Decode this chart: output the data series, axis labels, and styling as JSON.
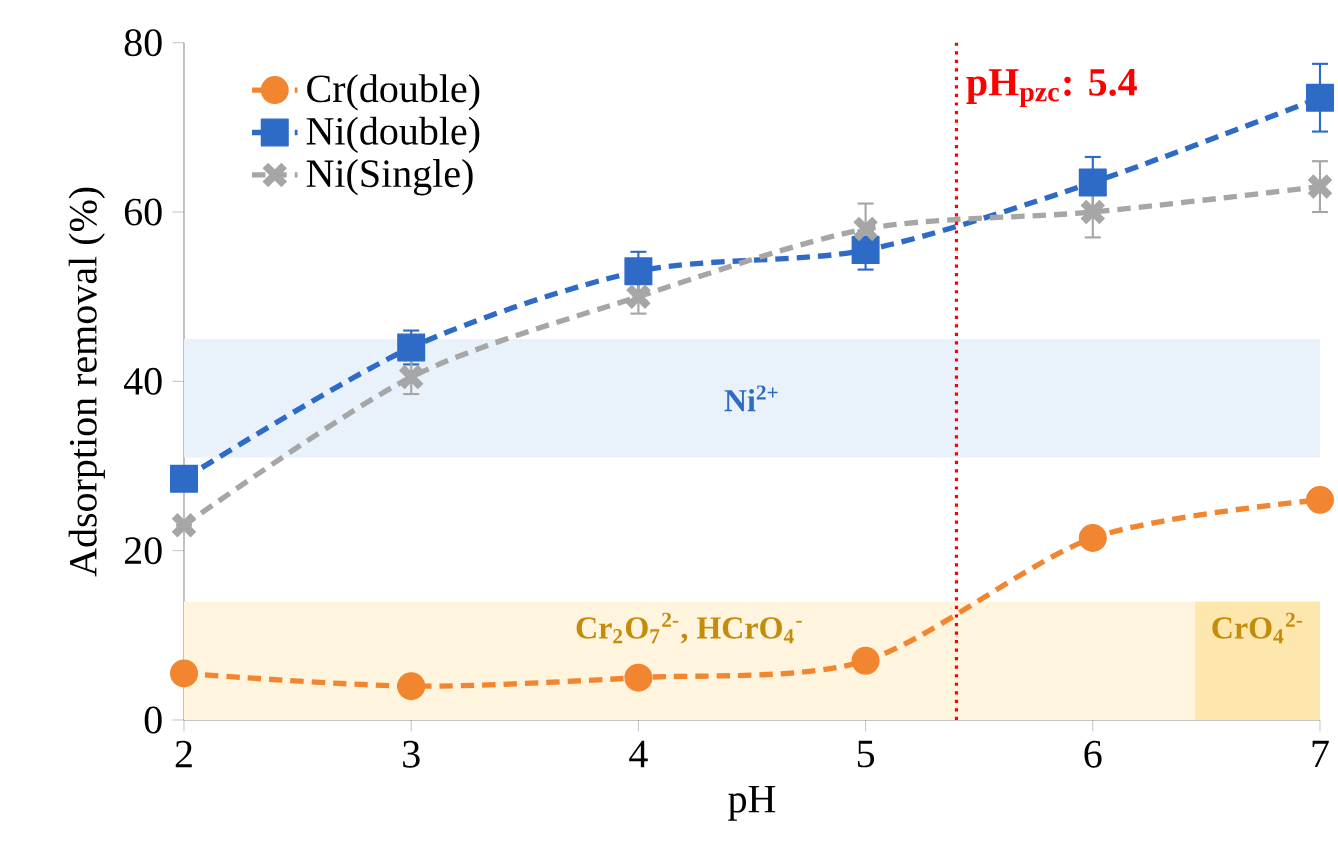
{
  "chart_data": {
    "type": "line",
    "xlabel": "pH",
    "ylabel": "Adsorption removal (%)",
    "x": [
      2,
      3,
      4,
      5,
      6,
      7
    ],
    "series": [
      {
        "name": "Cr(double)",
        "color": "#f28530",
        "marker": "circle",
        "line_style": "dashed",
        "values": [
          5.5,
          4,
          5,
          7,
          21.5,
          26
        ]
      },
      {
        "name": "Ni(double)",
        "color": "#2e6bc6",
        "marker": "square",
        "line_style": "dashed",
        "values": [
          28.5,
          44,
          53,
          55.5,
          63.5,
          73.5
        ],
        "errors": [
          null,
          2,
          2.3,
          2.3,
          3,
          4
        ]
      },
      {
        "name": "Ni(Single)",
        "color": "#a6a6a6",
        "marker": "cross",
        "line_style": "dashed",
        "values": [
          23,
          40.5,
          50,
          58,
          60,
          63
        ],
        "errors": [
          null,
          2,
          2,
          3,
          3,
          3
        ]
      }
    ],
    "xlim": [
      2,
      7
    ],
    "ylim": [
      0,
      80
    ],
    "xticks": [
      2,
      3,
      4,
      5,
      6,
      7
    ],
    "yticks": [
      0,
      20,
      40,
      60,
      80
    ],
    "grid": false,
    "legend": "top left",
    "ref_lines": [
      {
        "axis": "x",
        "value": 5.4,
        "label": "pH$_{pzc}$: 5.4",
        "color": "#ff0000",
        "line_style": "dotted"
      }
    ],
    "bands": [
      {
        "axis": "y",
        "from": 31,
        "to": 45,
        "label": "Ni$^{2+}$",
        "color": "#e9f1fb"
      },
      {
        "axis": "y",
        "from": 0,
        "to": 14,
        "label": "Cr$_{2}$O$_{7}$$^{2-}$, HCrO$_{4}$$^{-}$",
        "color": "#fff4de"
      },
      {
        "axis": "x",
        "from": 6.45,
        "to": 7,
        "label": "CrO$_{4}$$^{2-}$",
        "color": "#fde7ad"
      }
    ]
  }
}
